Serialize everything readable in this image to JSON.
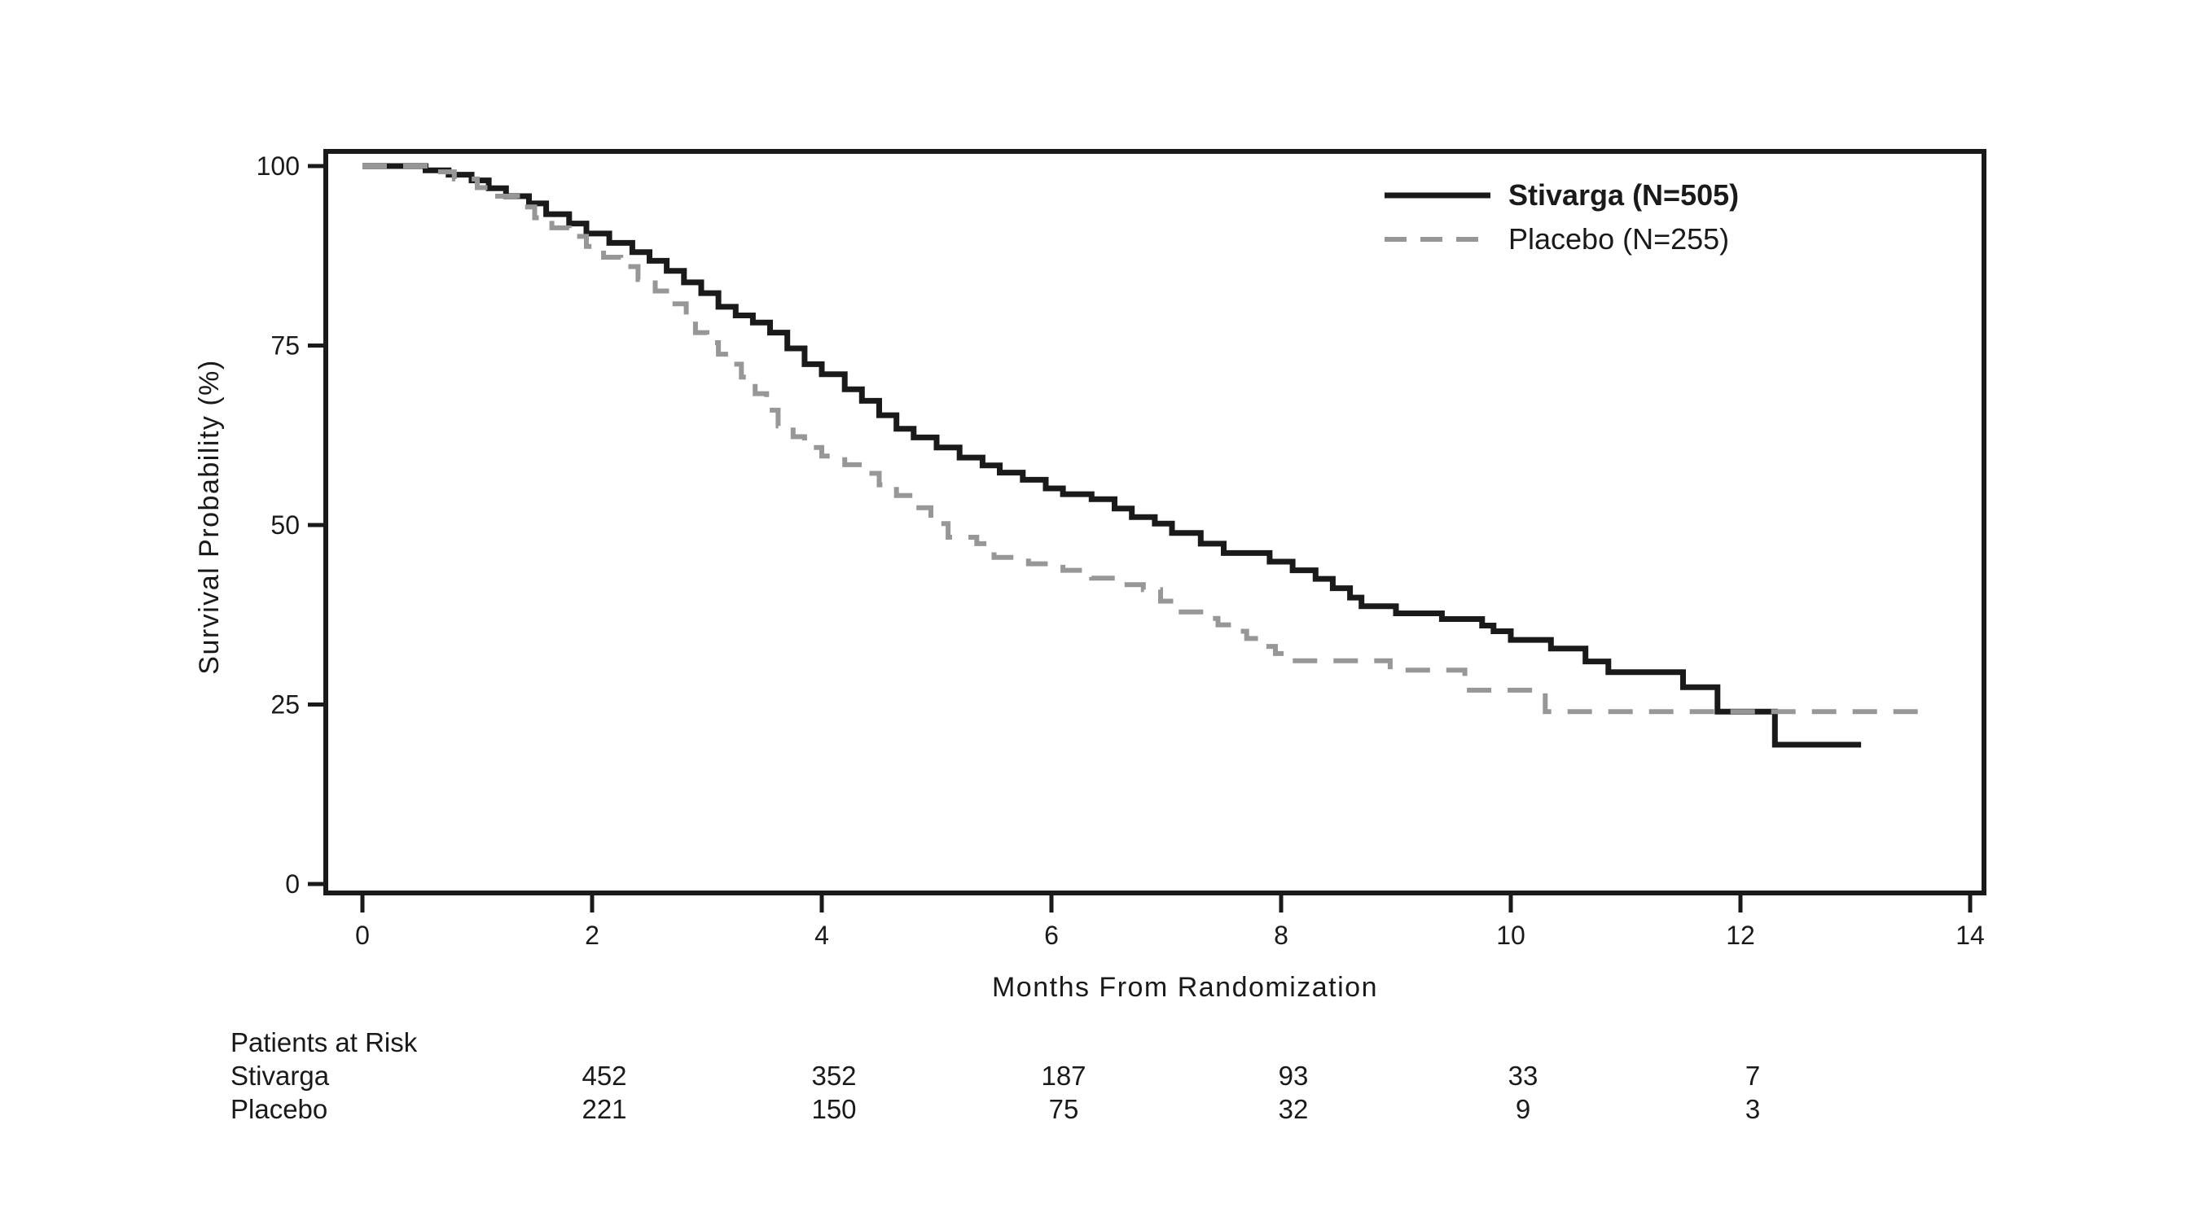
{
  "page": {
    "background": "#ffffff"
  },
  "chart_data": {
    "type": "line",
    "subtype": "kaplan-meier-step-curve",
    "title": "",
    "xlabel": "Months From Randomization",
    "ylabel": "Survival Probability (%)",
    "xlim": [
      0,
      14
    ],
    "ylim": [
      0,
      100
    ],
    "x_ticks": [
      0,
      2,
      4,
      6,
      8,
      10,
      12,
      14
    ],
    "y_ticks": [
      0,
      25,
      50,
      75,
      100
    ],
    "grid": false,
    "legend_position": "top-right-inside",
    "axis_color": "#1a1a1a",
    "series": [
      {
        "name": "Stivarga (N=505)",
        "color": "#1a1a1a",
        "line_style": "solid",
        "bold_in_legend": true,
        "points": [
          [
            0,
            100
          ],
          [
            0.55,
            99.4
          ],
          [
            0.75,
            98.8
          ],
          [
            0.95,
            98.0
          ],
          [
            1.1,
            96.9
          ],
          [
            1.25,
            95.8
          ],
          [
            1.45,
            94.8
          ],
          [
            1.6,
            93.3
          ],
          [
            1.8,
            92.0
          ],
          [
            1.95,
            90.6
          ],
          [
            2.15,
            89.3
          ],
          [
            2.35,
            88.0
          ],
          [
            2.5,
            86.8
          ],
          [
            2.65,
            85.4
          ],
          [
            2.8,
            83.8
          ],
          [
            2.95,
            82.3
          ],
          [
            3.1,
            80.4
          ],
          [
            3.25,
            79.2
          ],
          [
            3.4,
            78.2
          ],
          [
            3.55,
            76.8
          ],
          [
            3.7,
            74.6
          ],
          [
            3.85,
            72.4
          ],
          [
            4.0,
            71.0
          ],
          [
            4.2,
            68.9
          ],
          [
            4.35,
            67.3
          ],
          [
            4.5,
            65.3
          ],
          [
            4.65,
            63.4
          ],
          [
            4.8,
            62.2
          ],
          [
            5.0,
            60.8
          ],
          [
            5.2,
            59.4
          ],
          [
            5.4,
            58.3
          ],
          [
            5.55,
            57.3
          ],
          [
            5.75,
            56.3
          ],
          [
            5.95,
            55.1
          ],
          [
            6.1,
            54.3
          ],
          [
            6.35,
            53.6
          ],
          [
            6.55,
            52.3
          ],
          [
            6.7,
            51.1
          ],
          [
            6.9,
            50.2
          ],
          [
            7.05,
            48.9
          ],
          [
            7.3,
            47.4
          ],
          [
            7.5,
            46.1
          ],
          [
            7.9,
            44.9
          ],
          [
            8.1,
            43.7
          ],
          [
            8.3,
            42.5
          ],
          [
            8.45,
            41.2
          ],
          [
            8.6,
            39.9
          ],
          [
            8.7,
            38.7
          ],
          [
            9.0,
            37.7
          ],
          [
            9.4,
            36.9
          ],
          [
            9.75,
            36.0
          ],
          [
            9.85,
            35.2
          ],
          [
            10.0,
            34.0
          ],
          [
            10.35,
            32.8
          ],
          [
            10.65,
            31.0
          ],
          [
            10.85,
            29.5
          ],
          [
            11.5,
            27.4
          ],
          [
            11.8,
            24.0
          ],
          [
            12.3,
            19.4
          ],
          [
            13.05,
            19.4
          ]
        ]
      },
      {
        "name": "Placebo (N=255)",
        "color": "#979797",
        "line_style": "dashed",
        "bold_in_legend": false,
        "points": [
          [
            0,
            100
          ],
          [
            0.6,
            99.2
          ],
          [
            0.8,
            98.2
          ],
          [
            1.0,
            97.0
          ],
          [
            1.15,
            95.8
          ],
          [
            1.35,
            94.3
          ],
          [
            1.5,
            92.8
          ],
          [
            1.65,
            91.4
          ],
          [
            1.8,
            90.2
          ],
          [
            1.95,
            88.8
          ],
          [
            2.1,
            87.3
          ],
          [
            2.25,
            86.0
          ],
          [
            2.4,
            84.2
          ],
          [
            2.55,
            82.6
          ],
          [
            2.7,
            80.8
          ],
          [
            2.82,
            78.6
          ],
          [
            2.9,
            76.8
          ],
          [
            3.0,
            75.4
          ],
          [
            3.1,
            73.8
          ],
          [
            3.2,
            72.4
          ],
          [
            3.3,
            70.6
          ],
          [
            3.42,
            68.3
          ],
          [
            3.52,
            66.0
          ],
          [
            3.62,
            63.8
          ],
          [
            3.75,
            62.3
          ],
          [
            3.85,
            60.8
          ],
          [
            4.0,
            59.6
          ],
          [
            4.2,
            58.4
          ],
          [
            4.35,
            57.2
          ],
          [
            4.5,
            55.6
          ],
          [
            4.65,
            54.1
          ],
          [
            4.8,
            52.4
          ],
          [
            4.95,
            50.2
          ],
          [
            5.1,
            48.3
          ],
          [
            5.35,
            47.4
          ],
          [
            5.5,
            45.5
          ],
          [
            5.8,
            44.6
          ],
          [
            6.1,
            43.7
          ],
          [
            6.35,
            42.6
          ],
          [
            6.6,
            41.7
          ],
          [
            6.8,
            41.0
          ],
          [
            6.95,
            39.4
          ],
          [
            7.1,
            37.9
          ],
          [
            7.35,
            37.0
          ],
          [
            7.45,
            36.1
          ],
          [
            7.6,
            35.2
          ],
          [
            7.7,
            34.2
          ],
          [
            7.85,
            33.1
          ],
          [
            7.95,
            32.1
          ],
          [
            8.1,
            31.1
          ],
          [
            8.95,
            29.8
          ],
          [
            9.6,
            27.0
          ],
          [
            10.3,
            24.0
          ],
          [
            13.62,
            24.0
          ]
        ]
      }
    ],
    "risk_table": {
      "title": "Patients at Risk",
      "timepoints": [
        2,
        4,
        6,
        8,
        10,
        12
      ],
      "rows": [
        {
          "label": "Stivarga",
          "counts": [
            452,
            352,
            187,
            93,
            33,
            7
          ]
        },
        {
          "label": "Placebo",
          "counts": [
            221,
            150,
            75,
            32,
            9,
            3
          ]
        }
      ]
    }
  }
}
